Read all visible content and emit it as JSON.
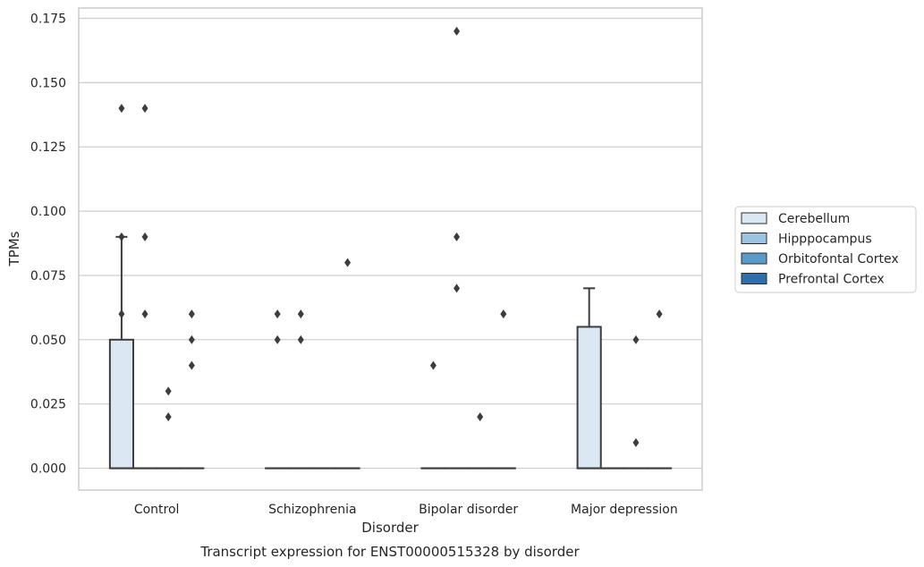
{
  "chart_data": {
    "type": "box",
    "title": "Transcript expression for ENST00000515328 by disorder",
    "xlabel": "Disorder",
    "ylabel": "TPMs",
    "ylim": [
      -0.0085,
      0.179
    ],
    "yticks": [
      "0.000",
      "0.025",
      "0.050",
      "0.075",
      "0.100",
      "0.125",
      "0.150",
      "0.175"
    ],
    "ytick_values": [
      0,
      0.025,
      0.05,
      0.075,
      0.1,
      0.125,
      0.15,
      0.175
    ],
    "grid": true,
    "legend_position": "right",
    "categories": [
      "Control",
      "Schizophrenia",
      "Bipolar disorder",
      "Major depression"
    ],
    "series": [
      {
        "name": "Cerebellum",
        "color": "#dbe8f4",
        "boxes": [
          {
            "q1": 0,
            "median": 0,
            "q3": 0.05,
            "whisker_low": 0,
            "whisker_high": 0.09,
            "outliers": [
              0.14,
              0.09,
              0.06
            ]
          },
          {
            "q1": 0,
            "median": 0,
            "q3": 0,
            "whisker_low": 0,
            "whisker_high": 0,
            "outliers": [
              0.06,
              0.05
            ]
          },
          {
            "q1": 0,
            "median": 0,
            "q3": 0,
            "whisker_low": 0,
            "whisker_high": 0,
            "outliers": [
              0.04
            ]
          },
          {
            "q1": 0,
            "median": 0,
            "q3": 0.055,
            "whisker_low": 0,
            "whisker_high": 0.07,
            "outliers": []
          }
        ]
      },
      {
        "name": "Hipppocampus",
        "color": "#9cc3df",
        "boxes": [
          {
            "q1": 0,
            "median": 0,
            "q3": 0,
            "whisker_low": 0,
            "whisker_high": 0,
            "outliers": [
              0.14,
              0.09,
              0.06
            ]
          },
          {
            "q1": 0,
            "median": 0,
            "q3": 0,
            "whisker_low": 0,
            "whisker_high": 0,
            "outliers": [
              0.06,
              0.05
            ]
          },
          {
            "q1": 0,
            "median": 0,
            "q3": 0,
            "whisker_low": 0,
            "whisker_high": 0,
            "outliers": [
              0.17,
              0.09,
              0.07
            ]
          },
          {
            "q1": 0,
            "median": 0,
            "q3": 0,
            "whisker_low": 0,
            "whisker_high": 0,
            "outliers": []
          }
        ]
      },
      {
        "name": "Orbitofontal Cortex",
        "color": "#5a9bc9",
        "boxes": [
          {
            "q1": 0,
            "median": 0,
            "q3": 0,
            "whisker_low": 0,
            "whisker_high": 0,
            "outliers": [
              0.03,
              0.02
            ]
          },
          {
            "q1": 0,
            "median": 0,
            "q3": 0,
            "whisker_low": 0,
            "whisker_high": 0,
            "outliers": []
          },
          {
            "q1": 0,
            "median": 0,
            "q3": 0,
            "whisker_low": 0,
            "whisker_high": 0,
            "outliers": [
              0.02
            ]
          },
          {
            "q1": 0,
            "median": 0,
            "q3": 0,
            "whisker_low": 0,
            "whisker_high": 0,
            "outliers": [
              0.05,
              0.01
            ]
          }
        ]
      },
      {
        "name": "Prefrontal Cortex",
        "color": "#2c6fac",
        "boxes": [
          {
            "q1": 0,
            "median": 0,
            "q3": 0,
            "whisker_low": 0,
            "whisker_high": 0,
            "outliers": [
              0.06,
              0.05,
              0.04
            ]
          },
          {
            "q1": 0,
            "median": 0,
            "q3": 0,
            "whisker_low": 0,
            "whisker_high": 0,
            "outliers": [
              0.08
            ]
          },
          {
            "q1": 0,
            "median": 0,
            "q3": 0,
            "whisker_low": 0,
            "whisker_high": 0,
            "outliers": [
              0.06
            ]
          },
          {
            "q1": 0,
            "median": 0,
            "q3": 0,
            "whisker_low": 0,
            "whisker_high": 0,
            "outliers": [
              0.06
            ]
          }
        ]
      }
    ]
  }
}
